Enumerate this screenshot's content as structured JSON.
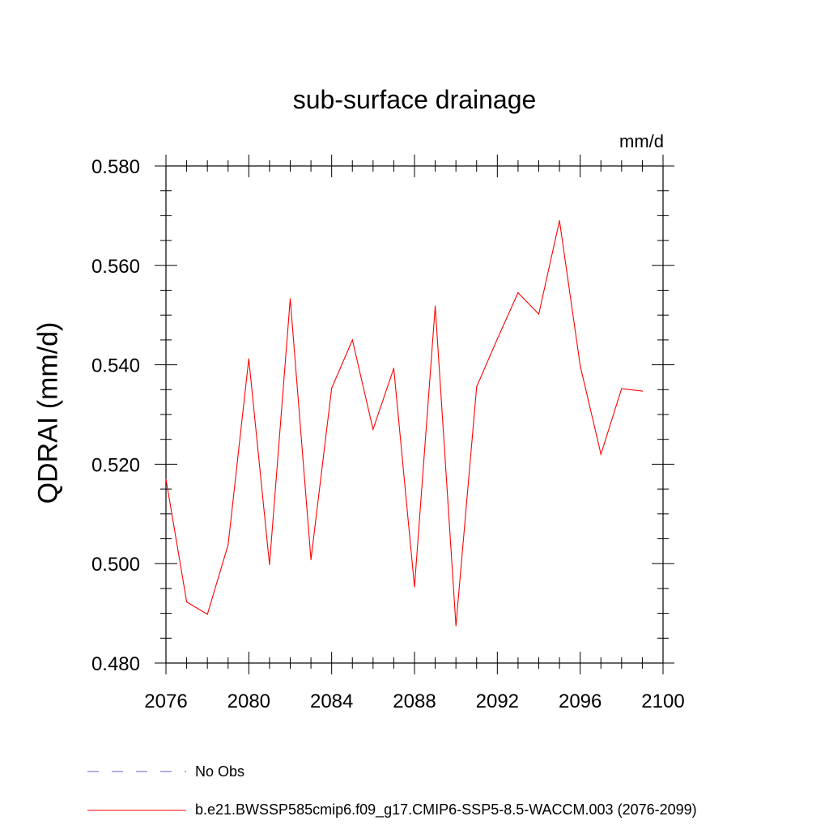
{
  "chart_data": {
    "type": "line",
    "title": "sub-surface drainage",
    "units": "mm/d",
    "xlabel": "",
    "ylabel": "QDRAI  (mm/d)",
    "xlim": [
      2076,
      2100
    ],
    "ylim": [
      0.48,
      0.58
    ],
    "xticks": [
      2076,
      2080,
      2084,
      2088,
      2092,
      2096,
      2100
    ],
    "yticks": [
      "0.480",
      "0.500",
      "0.520",
      "0.540",
      "0.560",
      "0.580"
    ],
    "ytick_values": [
      0.48,
      0.5,
      0.52,
      0.54,
      0.56,
      0.58
    ],
    "series": [
      {
        "name": "b.e21.BWSSP585cmip6.f09_g17.CMIP6-SSP5-8.5-WACCM.003 (2076-2099)",
        "color": "#ff0000",
        "x": [
          2076,
          2077,
          2078,
          2079,
          2080,
          2081,
          2082,
          2083,
          2084,
          2085,
          2086,
          2087,
          2088,
          2089,
          2090,
          2091,
          2092,
          2093,
          2094,
          2095,
          2096,
          2097,
          2098,
          2099
        ],
        "values": [
          0.517,
          0.4923,
          0.4898,
          0.5038,
          0.5412,
          0.4998,
          0.5533,
          0.5008,
          0.5353,
          0.545,
          0.527,
          0.5393,
          0.4953,
          0.5518,
          0.4875,
          0.5356,
          0.5452,
          0.5545,
          0.5502,
          0.569,
          0.5398,
          0.522,
          0.5352,
          0.5347
        ]
      }
    ],
    "legend": [
      {
        "label": "No Obs",
        "color": "#6a5acd",
        "style": "dashed"
      },
      {
        "label": "b.e21.BWSSP585cmip6.f09_g17.CMIP6-SSP5-8.5-WACCM.003 (2076-2099)",
        "color": "#ff0000",
        "style": "solid"
      }
    ]
  }
}
